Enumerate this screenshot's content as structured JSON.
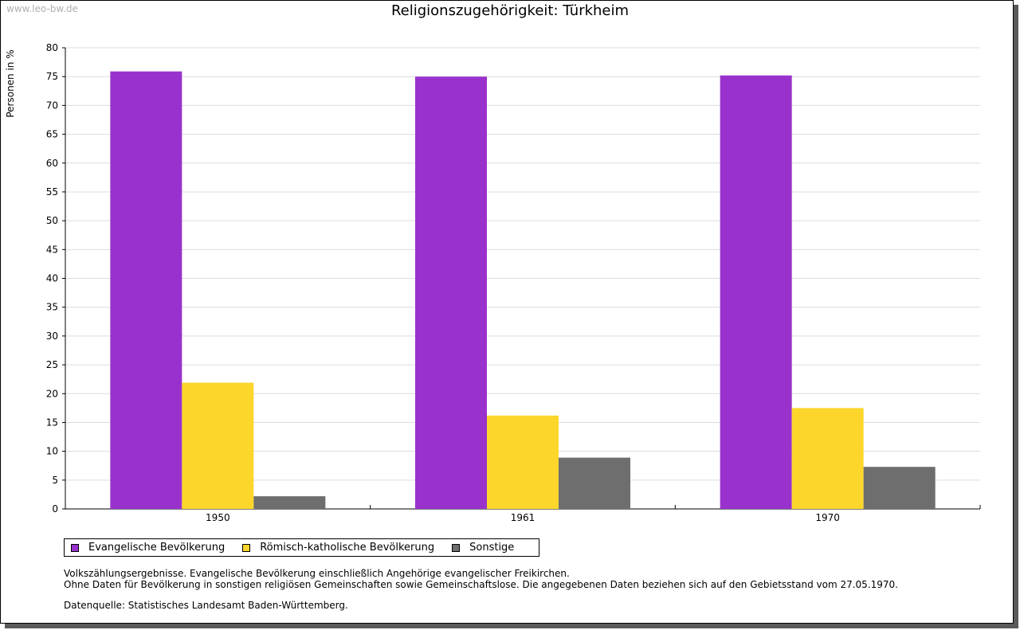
{
  "watermark": "www.leo-bw.de",
  "chart_data": {
    "type": "bar",
    "title": "Religionszugehörigkeit: Türkheim",
    "xlabel": "",
    "ylabel": "Personen in %",
    "categories": [
      "1950",
      "1961",
      "1970"
    ],
    "series": [
      {
        "name": "Evangelische Bevölkerung",
        "color": "#9932cc",
        "values": [
          75.9,
          75.0,
          75.2
        ]
      },
      {
        "name": "Römisch-katholische Bevölkerung",
        "color": "#fcd62b",
        "values": [
          21.9,
          16.2,
          17.5
        ]
      },
      {
        "name": "Sonstige",
        "color": "#6e6e6e",
        "values": [
          2.2,
          8.9,
          7.3
        ]
      }
    ],
    "ylim": [
      0,
      80
    ],
    "yticks": [
      0,
      5,
      10,
      15,
      20,
      25,
      30,
      35,
      40,
      45,
      50,
      55,
      60,
      65,
      70,
      75,
      80
    ],
    "grid": true,
    "legend_position": "bottom"
  },
  "notes": [
    "Volkszählungsergebnisse. Evangelische Bevölkerung einschließlich Angehörige evangelischer Freikirchen.",
    "Ohne Daten für Bevölkerung in sonstigen religiösen Gemeinschaften sowie Gemeinschaftslose. Die angegebenen Daten beziehen sich auf den Gebietsstand vom 27.05.1970."
  ],
  "source": "Datenquelle: Statistisches Landesamt Baden-Württemberg."
}
